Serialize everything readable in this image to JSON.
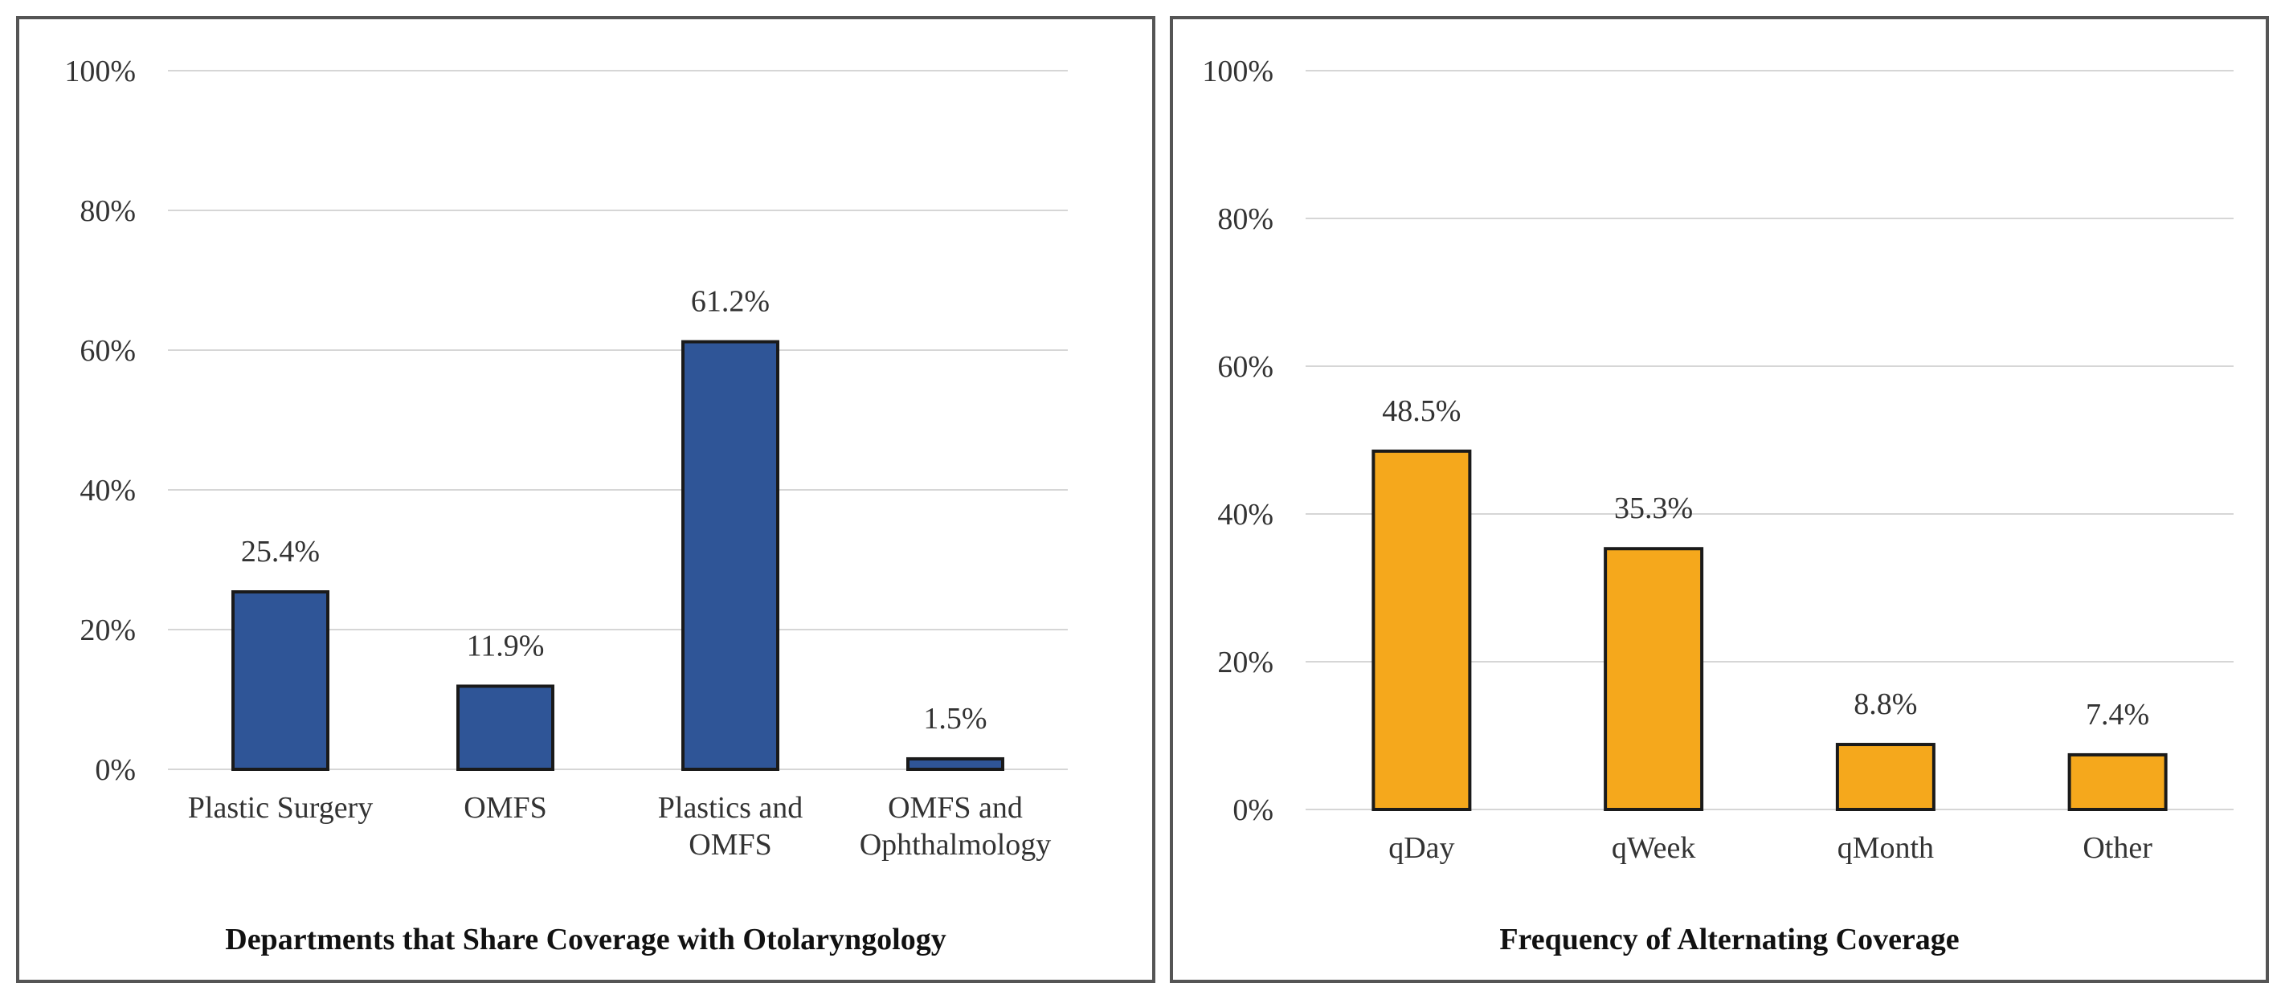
{
  "chart_data": [
    {
      "type": "bar",
      "xlabel": "Departments that Share Coverage with Otolaryngology",
      "ylabel": "",
      "ylim": [
        0,
        100
      ],
      "yticks": [
        "0%",
        "20%",
        "40%",
        "60%",
        "80%",
        "100%"
      ],
      "grid": true,
      "categories": [
        [
          "Plastic Surgery"
        ],
        [
          "OMFS"
        ],
        [
          "Plastics and",
          "OMFS"
        ],
        [
          "OMFS and",
          "Ophthalmology"
        ]
      ],
      "values": [
        25.4,
        11.9,
        61.2,
        1.5
      ],
      "data_labels": [
        "25.4%",
        "11.9%",
        "61.2%",
        "1.5%"
      ],
      "bar_color": "#2f5597",
      "bar_edge_color": "#1a1a1a"
    },
    {
      "type": "bar",
      "xlabel": "Frequency of Alternating Coverage",
      "ylabel": "",
      "ylim": [
        0,
        100
      ],
      "yticks": [
        "0%",
        "20%",
        "40%",
        "60%",
        "80%",
        "100%"
      ],
      "grid": true,
      "categories": [
        [
          "qDay"
        ],
        [
          "qWeek"
        ],
        [
          "qMonth"
        ],
        [
          "Other"
        ]
      ],
      "values": [
        48.5,
        35.3,
        8.8,
        7.4
      ],
      "data_labels": [
        "48.5%",
        "35.3%",
        "8.8%",
        "7.4%"
      ],
      "bar_color": "#f5a81c",
      "bar_edge_color": "#1a1a1a"
    }
  ]
}
